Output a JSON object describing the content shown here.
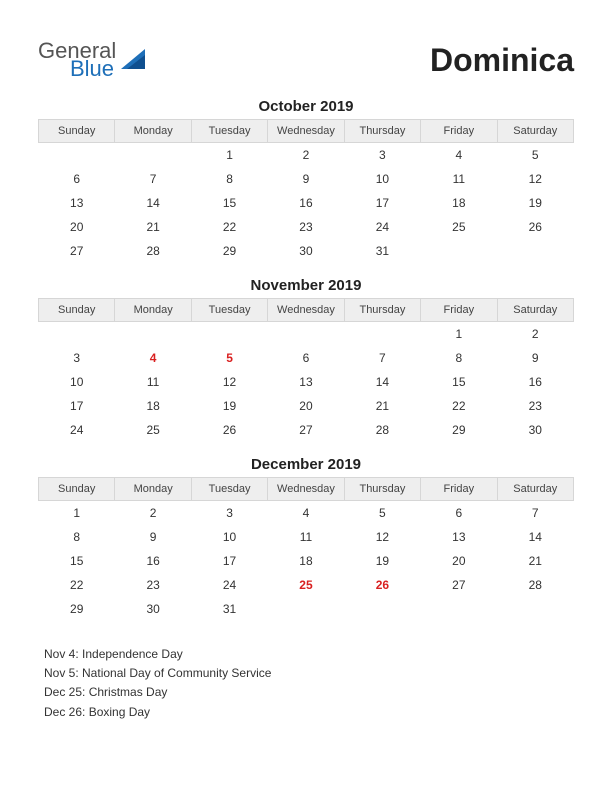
{
  "logo": {
    "general": "General",
    "blue": "Blue"
  },
  "title": "Dominica",
  "day_headers": [
    "Sunday",
    "Monday",
    "Tuesday",
    "Wednesday",
    "Thursday",
    "Friday",
    "Saturday"
  ],
  "colors": {
    "background": "#ffffff",
    "text": "#333333",
    "header_bg": "#eeeeee",
    "header_border": "#d6d6d6",
    "holiday": "#d92020",
    "logo_gray": "#555555",
    "logo_blue": "#1e6fb8"
  },
  "fonts": {
    "title_size_pt": 32,
    "month_title_size_pt": 15,
    "day_header_size_pt": 11,
    "cell_size_pt": 12,
    "holiday_list_size_pt": 12
  },
  "months": [
    {
      "title": "October 2019",
      "weeks": [
        [
          "",
          "",
          "1",
          "2",
          "3",
          "4",
          "5"
        ],
        [
          "6",
          "7",
          "8",
          "9",
          "10",
          "11",
          "12"
        ],
        [
          "13",
          "14",
          "15",
          "16",
          "17",
          "18",
          "19"
        ],
        [
          "20",
          "21",
          "22",
          "23",
          "24",
          "25",
          "26"
        ],
        [
          "27",
          "28",
          "29",
          "30",
          "31",
          "",
          ""
        ]
      ],
      "holidays": []
    },
    {
      "title": "November 2019",
      "weeks": [
        [
          "",
          "",
          "",
          "",
          "",
          "1",
          "2"
        ],
        [
          "3",
          "4",
          "5",
          "6",
          "7",
          "8",
          "9"
        ],
        [
          "10",
          "11",
          "12",
          "13",
          "14",
          "15",
          "16"
        ],
        [
          "17",
          "18",
          "19",
          "20",
          "21",
          "22",
          "23"
        ],
        [
          "24",
          "25",
          "26",
          "27",
          "28",
          "29",
          "30"
        ]
      ],
      "holidays": [
        "4",
        "5"
      ]
    },
    {
      "title": "December 2019",
      "weeks": [
        [
          "1",
          "2",
          "3",
          "4",
          "5",
          "6",
          "7"
        ],
        [
          "8",
          "9",
          "10",
          "11",
          "12",
          "13",
          "14"
        ],
        [
          "15",
          "16",
          "17",
          "18",
          "19",
          "20",
          "21"
        ],
        [
          "22",
          "23",
          "24",
          "25",
          "26",
          "27",
          "28"
        ],
        [
          "29",
          "30",
          "31",
          "",
          "",
          "",
          ""
        ]
      ],
      "holidays": [
        "25",
        "26"
      ]
    }
  ],
  "holiday_list": [
    "Nov 4: Independence Day",
    "Nov 5: National Day of Community Service",
    "Dec 25: Christmas Day",
    "Dec 26: Boxing Day"
  ]
}
